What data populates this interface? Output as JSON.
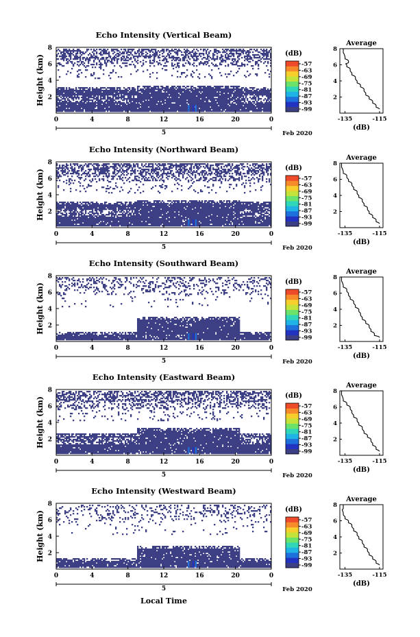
{
  "footer": {
    "xlabel": "Local Time"
  },
  "colors": {
    "echo": "#3c3f84",
    "colorbar": [
      "#3c3f84",
      "#2233c2",
      "#1e70dd",
      "#1fb3e6",
      "#2fd6b8",
      "#6be26a",
      "#c4e23a",
      "#f6cf2c",
      "#f78b2b",
      "#ee4b2a"
    ]
  },
  "shared": {
    "xlim": [
      0,
      24
    ],
    "x_ticks": [
      "0",
      "4",
      "8",
      "12",
      "16",
      "20",
      "0"
    ],
    "ylim": [
      0,
      8
    ],
    "y_ticks": [
      "8",
      "6",
      "4",
      "2"
    ],
    "date_labels": [
      "5",
      "Feb 2020"
    ],
    "ylabel": "Height (km)",
    "colorbar_label": "(dB)",
    "colorbar_ticks": [
      "-57",
      "-63",
      "-69",
      "-75",
      "-81",
      "-87",
      "-93",
      "-99"
    ],
    "profile_title": "Average",
    "profile_xlabel": "(dB)",
    "profile_x_ticks": [
      "-135",
      "-115"
    ],
    "profile_xlim": [
      -138,
      -113
    ],
    "profile_y_ticks": [
      "8",
      "6",
      "4",
      "2"
    ]
  },
  "chart_data": [
    {
      "type": "heatmap",
      "title": "Echo Intensity (Vertical Beam)",
      "layer_top_km": 3.2,
      "layer_top_day_km": 3.4,
      "upper_echo_level": 0.5,
      "profile": {
        "height_km": [
          8.0,
          7.0,
          6.5,
          6.0,
          5.5,
          5.0,
          4.5,
          4.0,
          3.5,
          3.0,
          2.5,
          2.0,
          1.5,
          1.0,
          0.5
        ],
        "db": [
          -136,
          -135,
          -133,
          -134,
          -132,
          -131,
          -129,
          -128,
          -126,
          -124,
          -123,
          -121,
          -119,
          -117,
          -115
        ]
      }
    },
    {
      "type": "heatmap",
      "title": "Echo Intensity (Northward Beam)",
      "layer_top_km": 3.2,
      "layer_top_day_km": 3.4,
      "upper_echo_level": 0.55,
      "profile": {
        "height_km": [
          8.0,
          7.0,
          6.5,
          6.0,
          5.5,
          5.0,
          4.5,
          4.0,
          3.5,
          3.0,
          2.5,
          2.0,
          1.5,
          1.0,
          0.5
        ],
        "db": [
          -137,
          -136,
          -134,
          -133,
          -131,
          -130,
          -128,
          -127,
          -125,
          -124,
          -122,
          -121,
          -119,
          -117,
          -115
        ]
      }
    },
    {
      "type": "heatmap",
      "title": "Echo Intensity (Southward Beam)",
      "layer_top_km": 1.2,
      "layer_top_day_km": 3.0,
      "upper_echo_level": 0.25,
      "profile": {
        "height_km": [
          8.0,
          7.0,
          6.5,
          6.0,
          5.5,
          5.0,
          4.5,
          4.0,
          3.5,
          3.0,
          2.5,
          2.0,
          1.5,
          1.0,
          0.5
        ],
        "db": [
          -137,
          -136,
          -134,
          -133,
          -132,
          -130,
          -129,
          -127,
          -126,
          -125,
          -123,
          -121,
          -120,
          -118,
          -115
        ]
      }
    },
    {
      "type": "heatmap",
      "title": "Echo Intensity (Eastward Beam)",
      "layer_top_km": 2.6,
      "layer_top_day_km": 3.4,
      "upper_echo_level": 0.5,
      "profile": {
        "height_km": [
          8.0,
          7.0,
          6.5,
          6.0,
          5.5,
          5.0,
          4.5,
          4.0,
          3.5,
          3.0,
          2.5,
          2.0,
          1.5,
          1.0,
          0.5
        ],
        "db": [
          -137,
          -136,
          -134,
          -132,
          -131,
          -130,
          -128,
          -127,
          -125,
          -124,
          -122,
          -120,
          -119,
          -117,
          -115
        ]
      }
    },
    {
      "type": "heatmap",
      "title": "Echo Intensity (Westward Beam)",
      "layer_top_km": 1.4,
      "layer_top_day_km": 2.9,
      "upper_echo_level": 0.2,
      "profile": {
        "height_km": [
          8.0,
          7.0,
          6.5,
          6.0,
          5.5,
          5.0,
          4.5,
          4.0,
          3.5,
          3.0,
          2.5,
          2.0,
          1.5,
          1.0,
          0.5
        ],
        "db": [
          -136,
          -136,
          -135,
          -133,
          -131,
          -130,
          -128,
          -127,
          -125,
          -124,
          -122,
          -121,
          -119,
          -117,
          -115
        ]
      }
    }
  ]
}
